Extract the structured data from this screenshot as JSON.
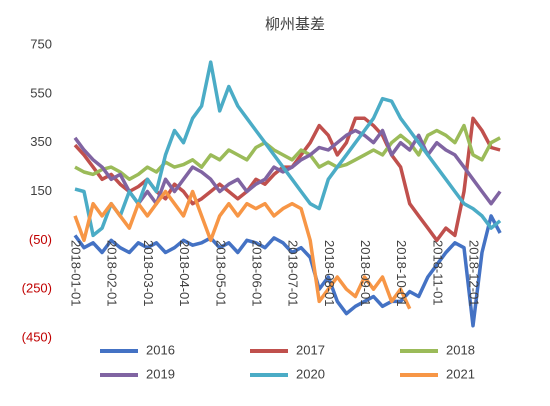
{
  "chart_data": {
    "type": "line",
    "title": "柳州基差",
    "categories": [
      "2018-01-01",
      null,
      null,
      null,
      "2018-02-01",
      null,
      null,
      null,
      "2018-03-01",
      null,
      null,
      null,
      "2018-04-01",
      null,
      null,
      null,
      "2018-05-01",
      null,
      null,
      null,
      "2018-06-01",
      null,
      null,
      null,
      "2018-07-01",
      null,
      null,
      null,
      "2018-08-01",
      null,
      null,
      null,
      "2018-09-01",
      null,
      null,
      null,
      "2018-10-01",
      null,
      null,
      null,
      "2018-11-01",
      null,
      null,
      null,
      "2018-12-01",
      null,
      null,
      null
    ],
    "series": [
      {
        "name": "2016",
        "color": "#4472c4",
        "values": [
          -30,
          -80,
          -60,
          -100,
          -50,
          -80,
          -100,
          -60,
          -80,
          -60,
          -100,
          -80,
          -50,
          -70,
          -60,
          -40,
          -80,
          -60,
          -100,
          -50,
          -60,
          -80,
          -40,
          -60,
          -100,
          -80,
          -120,
          -250,
          -200,
          -300,
          -350,
          -320,
          -300,
          -280,
          -320,
          -300,
          -300,
          -260,
          -280,
          -200,
          -150,
          -100,
          -60,
          -80,
          -400,
          -100,
          50,
          -20
        ]
      },
      {
        "name": "2017",
        "color": "#c0504d",
        "values": [
          340,
          300,
          250,
          200,
          220,
          180,
          150,
          170,
          200,
          150,
          120,
          180,
          150,
          100,
          120,
          150,
          180,
          150,
          120,
          150,
          200,
          180,
          220,
          250,
          250,
          300,
          350,
          420,
          380,
          300,
          350,
          450,
          450,
          420,
          380,
          300,
          250,
          100,
          50,
          0,
          -50,
          0,
          -30,
          150,
          450,
          400,
          330,
          320
        ]
      },
      {
        "name": "2018",
        "color": "#9bbb59",
        "values": [
          250,
          230,
          220,
          240,
          250,
          230,
          200,
          220,
          250,
          230,
          270,
          250,
          260,
          280,
          250,
          300,
          280,
          320,
          300,
          280,
          330,
          350,
          320,
          300,
          280,
          320,
          300,
          250,
          270,
          250,
          260,
          280,
          300,
          320,
          300,
          350,
          380,
          350,
          300,
          380,
          400,
          380,
          350,
          420,
          300,
          280,
          350,
          370
        ]
      },
      {
        "name": "2019",
        "color": "#8064a2",
        "values": [
          370,
          320,
          280,
          250,
          200,
          220,
          150,
          100,
          150,
          100,
          200,
          150,
          200,
          250,
          230,
          200,
          150,
          180,
          200,
          150,
          180,
          200,
          250,
          230,
          250,
          280,
          300,
          330,
          320,
          350,
          380,
          400,
          380,
          350,
          400,
          300,
          350,
          320,
          380,
          300,
          350,
          320,
          300,
          250,
          200,
          150,
          100,
          150
        ]
      },
      {
        "name": "2020",
        "color": "#4bacc6",
        "values": [
          160,
          150,
          -30,
          0,
          100,
          50,
          150,
          100,
          200,
          150,
          300,
          400,
          350,
          450,
          500,
          680,
          480,
          580,
          500,
          450,
          400,
          350,
          300,
          250,
          200,
          150,
          100,
          80,
          200,
          250,
          300,
          350,
          400,
          450,
          530,
          520,
          450,
          400,
          350,
          300,
          250,
          200,
          150,
          100,
          80,
          50,
          0,
          30
        ]
      },
      {
        "name": "2021",
        "color": "#f79646",
        "values": [
          50,
          -50,
          100,
          50,
          100,
          50,
          0,
          100,
          50,
          100,
          150,
          100,
          50,
          150,
          50,
          -50,
          50,
          100,
          50,
          100,
          80,
          100,
          50,
          80,
          100,
          80,
          -50,
          -300,
          -250,
          -200,
          -250,
          -280,
          -200,
          -250,
          -200,
          -300,
          -250,
          -330,
          null,
          null,
          null,
          null,
          null,
          null,
          null,
          null,
          null,
          null
        ]
      }
    ],
    "ylim": [
      -450,
      750
    ],
    "yticks": [
      750,
      550,
      350,
      150,
      {
        "value": -50,
        "label": "(50)"
      },
      {
        "value": -250,
        "label": "(250)"
      },
      {
        "value": -450,
        "label": "(450)"
      }
    ],
    "negative_tick_color": "#c00000",
    "grid": false
  }
}
